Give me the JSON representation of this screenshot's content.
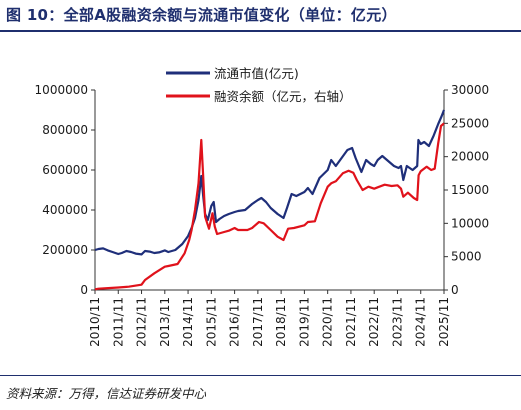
{
  "title": "图 10：全部A股融资余额与流通市值变化（单位：亿元）",
  "source": "资料来源：万得，信达证券研发中心",
  "colors": {
    "market_cap": "#1f2f7a",
    "margin_balance": "#e0121b",
    "accent": "#1f2f6e"
  },
  "chart_data": {
    "type": "line",
    "title": "图 10：全部A股融资余额与流通市值变化（单位：亿元）",
    "x_tick_labels": [
      "2010/11",
      "2011/11",
      "2012/11",
      "2013/11",
      "2014/11",
      "2015/11",
      "2016/11",
      "2017/11",
      "2018/11",
      "2019/11",
      "2020/11",
      "2021/11",
      "2022/11",
      "2023/11",
      "2024/11",
      "2025/11"
    ],
    "y_left": {
      "lim": [
        0,
        1000000
      ],
      "ticks": [
        0,
        200000,
        400000,
        600000,
        800000,
        1000000
      ],
      "tick_labels": [
        "0",
        "200000",
        "400000",
        "600000",
        "800000",
        "1000000"
      ]
    },
    "y_right": {
      "lim": [
        0,
        30000
      ],
      "ticks": [
        0,
        5000,
        10000,
        15000,
        20000,
        25000,
        30000
      ],
      "tick_labels": [
        "0",
        "5000",
        "10000",
        "15000",
        "20000",
        "25000",
        "30000"
      ]
    },
    "legend_position": "top-center",
    "grid": false,
    "series": [
      {
        "name": "流通市值(亿元)",
        "axis": "left",
        "color": "#1f2f7a",
        "points": [
          [
            2010.85,
            200000
          ],
          [
            2011.0,
            205000
          ],
          [
            2011.2,
            208000
          ],
          [
            2011.4,
            198000
          ],
          [
            2011.6,
            190000
          ],
          [
            2011.85,
            180000
          ],
          [
            2012.0,
            185000
          ],
          [
            2012.2,
            195000
          ],
          [
            2012.4,
            190000
          ],
          [
            2012.6,
            182000
          ],
          [
            2012.85,
            178000
          ],
          [
            2013.0,
            195000
          ],
          [
            2013.2,
            192000
          ],
          [
            2013.4,
            185000
          ],
          [
            2013.6,
            188000
          ],
          [
            2013.85,
            198000
          ],
          [
            2014.0,
            190000
          ],
          [
            2014.3,
            200000
          ],
          [
            2014.6,
            230000
          ],
          [
            2014.85,
            270000
          ],
          [
            2015.0,
            310000
          ],
          [
            2015.15,
            360000
          ],
          [
            2015.3,
            450000
          ],
          [
            2015.42,
            570000
          ],
          [
            2015.5,
            470000
          ],
          [
            2015.58,
            380000
          ],
          [
            2015.7,
            350000
          ],
          [
            2015.85,
            420000
          ],
          [
            2015.95,
            440000
          ],
          [
            2016.05,
            340000
          ],
          [
            2016.2,
            355000
          ],
          [
            2016.4,
            370000
          ],
          [
            2016.6,
            380000
          ],
          [
            2016.85,
            390000
          ],
          [
            2017.0,
            395000
          ],
          [
            2017.3,
            400000
          ],
          [
            2017.6,
            430000
          ],
          [
            2017.85,
            450000
          ],
          [
            2018.0,
            460000
          ],
          [
            2018.2,
            440000
          ],
          [
            2018.4,
            410000
          ],
          [
            2018.7,
            380000
          ],
          [
            2018.95,
            360000
          ],
          [
            2019.1,
            410000
          ],
          [
            2019.3,
            480000
          ],
          [
            2019.5,
            470000
          ],
          [
            2019.85,
            490000
          ],
          [
            2020.0,
            510000
          ],
          [
            2020.2,
            480000
          ],
          [
            2020.5,
            560000
          ],
          [
            2020.85,
            600000
          ],
          [
            2021.0,
            650000
          ],
          [
            2021.2,
            620000
          ],
          [
            2021.45,
            660000
          ],
          [
            2021.7,
            700000
          ],
          [
            2021.9,
            710000
          ],
          [
            2022.05,
            660000
          ],
          [
            2022.3,
            590000
          ],
          [
            2022.5,
            650000
          ],
          [
            2022.7,
            630000
          ],
          [
            2022.85,
            620000
          ],
          [
            2023.0,
            650000
          ],
          [
            2023.2,
            670000
          ],
          [
            2023.5,
            640000
          ],
          [
            2023.7,
            620000
          ],
          [
            2023.9,
            610000
          ],
          [
            2024.0,
            620000
          ],
          [
            2024.1,
            550000
          ],
          [
            2024.25,
            620000
          ],
          [
            2024.5,
            600000
          ],
          [
            2024.7,
            620000
          ],
          [
            2024.75,
            750000
          ],
          [
            2024.85,
            730000
          ],
          [
            2025.0,
            740000
          ],
          [
            2025.2,
            720000
          ],
          [
            2025.4,
            770000
          ],
          [
            2025.6,
            830000
          ],
          [
            2025.75,
            870000
          ],
          [
            2025.85,
            900000
          ]
        ]
      },
      {
        "name": "融资余额（亿元，右轴）",
        "axis": "right",
        "color": "#e0121b",
        "points": [
          [
            2010.85,
            100
          ],
          [
            2011.0,
            200
          ],
          [
            2011.5,
            300
          ],
          [
            2011.85,
            380
          ],
          [
            2012.3,
            500
          ],
          [
            2012.85,
            800
          ],
          [
            2013.0,
            1500
          ],
          [
            2013.4,
            2500
          ],
          [
            2013.85,
            3500
          ],
          [
            2014.0,
            3600
          ],
          [
            2014.4,
            3900
          ],
          [
            2014.7,
            5500
          ],
          [
            2014.9,
            7500
          ],
          [
            2015.0,
            9000
          ],
          [
            2015.15,
            12000
          ],
          [
            2015.3,
            16000
          ],
          [
            2015.42,
            22500
          ],
          [
            2015.5,
            17000
          ],
          [
            2015.58,
            11000
          ],
          [
            2015.75,
            9200
          ],
          [
            2015.9,
            11500
          ],
          [
            2016.0,
            9500
          ],
          [
            2016.1,
            8400
          ],
          [
            2016.4,
            8700
          ],
          [
            2016.6,
            8900
          ],
          [
            2016.85,
            9300
          ],
          [
            2017.0,
            9000
          ],
          [
            2017.4,
            9000
          ],
          [
            2017.6,
            9300
          ],
          [
            2017.9,
            10200
          ],
          [
            2018.1,
            10000
          ],
          [
            2018.4,
            9000
          ],
          [
            2018.7,
            8000
          ],
          [
            2018.95,
            7500
          ],
          [
            2019.15,
            9200
          ],
          [
            2019.4,
            9300
          ],
          [
            2019.85,
            9700
          ],
          [
            2020.0,
            10200
          ],
          [
            2020.3,
            10300
          ],
          [
            2020.55,
            13000
          ],
          [
            2020.85,
            15500
          ],
          [
            2021.0,
            16000
          ],
          [
            2021.2,
            16300
          ],
          [
            2021.5,
            17500
          ],
          [
            2021.75,
            17900
          ],
          [
            2021.95,
            17600
          ],
          [
            2022.1,
            16500
          ],
          [
            2022.35,
            15000
          ],
          [
            2022.6,
            15500
          ],
          [
            2022.85,
            15200
          ],
          [
            2023.0,
            15400
          ],
          [
            2023.3,
            15800
          ],
          [
            2023.6,
            15600
          ],
          [
            2023.85,
            15700
          ],
          [
            2024.0,
            15200
          ],
          [
            2024.1,
            14000
          ],
          [
            2024.3,
            14600
          ],
          [
            2024.55,
            13800
          ],
          [
            2024.7,
            13500
          ],
          [
            2024.76,
            17200
          ],
          [
            2024.85,
            17800
          ],
          [
            2025.1,
            18500
          ],
          [
            2025.3,
            18000
          ],
          [
            2025.45,
            18200
          ],
          [
            2025.6,
            22000
          ],
          [
            2025.72,
            24600
          ],
          [
            2025.85,
            25000
          ]
        ]
      }
    ]
  }
}
